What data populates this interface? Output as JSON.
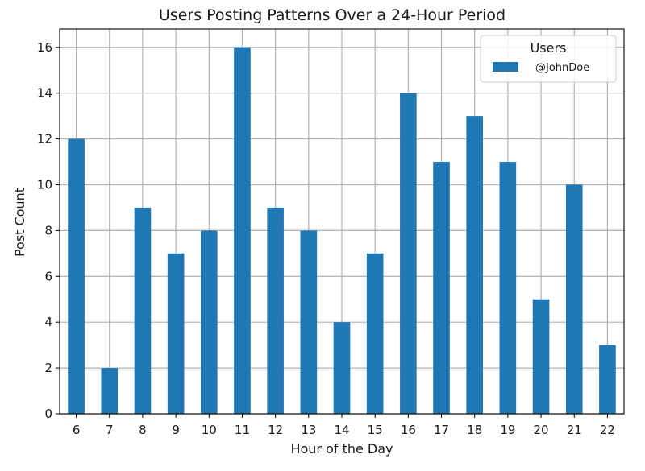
{
  "chart_data": {
    "type": "bar",
    "title": "Users Posting Patterns Over a 24-Hour Period",
    "xlabel": "Hour of the Day",
    "ylabel": "Post Count",
    "categories": [
      "6",
      "7",
      "8",
      "9",
      "10",
      "11",
      "12",
      "13",
      "14",
      "15",
      "16",
      "17",
      "18",
      "19",
      "20",
      "21",
      "22"
    ],
    "series": [
      {
        "name": "@JohnDoe",
        "values": [
          12,
          2,
          9,
          7,
          8,
          16,
          9,
          8,
          4,
          7,
          14,
          11,
          13,
          11,
          5,
          10,
          3
        ],
        "color": "#1f77b4"
      }
    ],
    "ylim": [
      0,
      16.8
    ],
    "yticks": [
      0,
      2,
      4,
      6,
      8,
      10,
      12,
      14,
      16
    ],
    "grid": true,
    "legend": {
      "title": "Users",
      "placement": "top-right"
    }
  }
}
